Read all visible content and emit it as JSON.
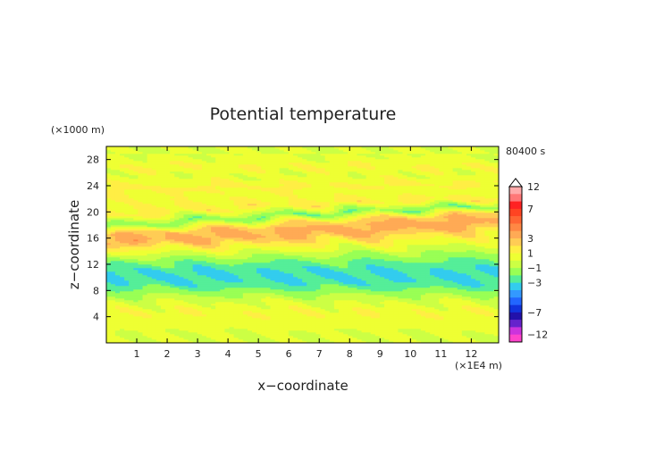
{
  "chart_data": {
    "type": "heatmap",
    "title": "Potential temperature",
    "xlabel": "x−coordinate",
    "ylabel": "z−coordinate",
    "x_unit": "(×1E4 m)",
    "y_unit": "(×1000 m)",
    "time_label": "80400 s",
    "xlim": [
      0,
      12.9
    ],
    "ylim": [
      0,
      30
    ],
    "x_ticks": [
      "1",
      "2",
      "3",
      "4",
      "5",
      "6",
      "7",
      "8",
      "9",
      "10",
      "11",
      "12"
    ],
    "y_ticks": [
      "4",
      "8",
      "12",
      "16",
      "20",
      "24",
      "28"
    ],
    "colorbar": {
      "labels": [
        "12",
        "7",
        "3",
        "1",
        "−1",
        "−3",
        "−7",
        "−12"
      ],
      "levels": [
        12,
        10,
        8,
        7,
        6,
        5,
        4,
        3,
        2,
        1,
        0,
        -1,
        -2,
        -3,
        -4,
        -5,
        -6,
        -7,
        -8,
        -10,
        -12
      ],
      "colors": [
        "#ffaaaa",
        "#ff7777",
        "#ff2222",
        "#ff4422",
        "#ff6633",
        "#ff8844",
        "#ffaa55",
        "#ffcc55",
        "#ffee44",
        "#eeff33",
        "#ccff44",
        "#99ff55",
        "#55ee99",
        "#33ccee",
        "#3399ff",
        "#2266ff",
        "#1133dd",
        "#2211aa",
        "#6622cc",
        "#cc33dd",
        "#ff44cc"
      ]
    },
    "bands": [
      {
        "z": 1.5,
        "value": 0.0
      },
      {
        "z": 3.0,
        "value": 0.4
      },
      {
        "z": 4.5,
        "value": 0.8
      },
      {
        "z": 6.0,
        "value": 0.2
      },
      {
        "z": 7.5,
        "value": -1.2
      },
      {
        "z": 9.0,
        "value": -2.8
      },
      {
        "z": 10.5,
        "value": -3.2
      },
      {
        "z": 12.0,
        "value": -2.4
      },
      {
        "z": 13.5,
        "value": -0.8
      },
      {
        "z": 15.0,
        "value": 1.2
      },
      {
        "z": 16.5,
        "value": 3.5
      },
      {
        "z": 18.0,
        "value": 2.8
      },
      {
        "z": 19.5,
        "value": -2.0
      },
      {
        "z": 21.0,
        "value": 1.5
      },
      {
        "z": 22.5,
        "value": 0.6
      },
      {
        "z": 24.0,
        "value": 1.2
      },
      {
        "z": 25.5,
        "value": 0.2
      },
      {
        "z": 27.0,
        "value": 0.9
      },
      {
        "z": 28.5,
        "value": 0.0
      }
    ]
  }
}
